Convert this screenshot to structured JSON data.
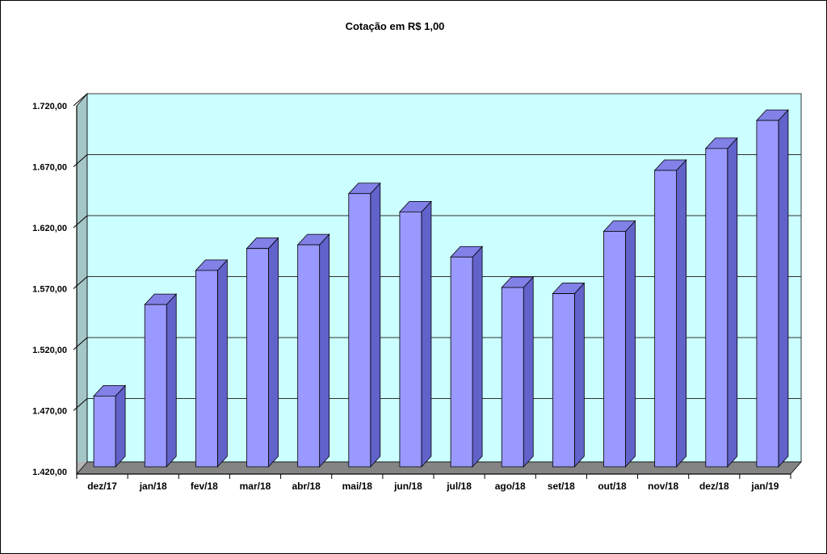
{
  "window": {
    "background": "#ffffff",
    "border_color": "#000000"
  },
  "chart_data": {
    "type": "bar",
    "style": "excel-3d-column",
    "title": "Cotação em R$ 1,00",
    "categories": [
      "dez/17",
      "jan/18",
      "fev/18",
      "mar/18",
      "abr/18",
      "mai/18",
      "jun/18",
      "jul/18",
      "ago/18",
      "set/18",
      "out/18",
      "nov/18",
      "dez/18",
      "jan/19"
    ],
    "values": [
      1482,
      1557,
      1585,
      1603,
      1606,
      1648,
      1633,
      1596,
      1571,
      1566,
      1617,
      1667,
      1685,
      1708
    ],
    "ylim": [
      1420,
      1720
    ],
    "ytick_step": 50,
    "yticks": [
      {
        "value": 1420,
        "label": "1.420,00"
      },
      {
        "value": 1470,
        "label": "1.470,00"
      },
      {
        "value": 1520,
        "label": "1.520,00"
      },
      {
        "value": 1570,
        "label": "1.570,00"
      },
      {
        "value": 1620,
        "label": "1.620,00"
      },
      {
        "value": 1670,
        "label": "1.670,00"
      },
      {
        "value": 1720,
        "label": "1.720,00"
      }
    ],
    "grid": true,
    "legend": "none",
    "colors": {
      "bar_front": "#9999ff",
      "bar_side": "#6262cb",
      "bar_top": "#8181e8",
      "bar_outline": "#000000",
      "plot_back_wall": "#ccffff",
      "plot_side_wall": "#a5c6c6",
      "plot_floor": "#848484",
      "plot_floor_corner": "#b5b5b5",
      "gridline": "#303030",
      "axis": "#000000",
      "text": "#000000"
    }
  }
}
